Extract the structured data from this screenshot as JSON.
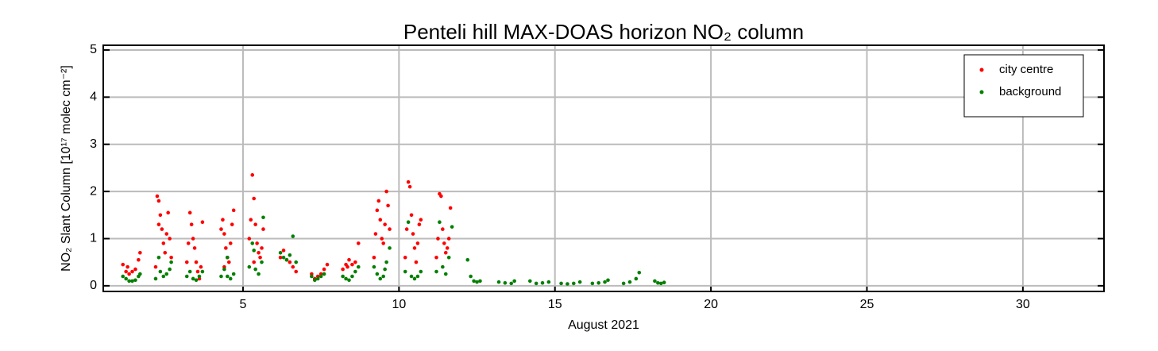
{
  "chart_data": {
    "type": "scatter",
    "title": "Penteli hill MAX-DOAS horizon NO₂ column",
    "x_label": "August 2021",
    "y_label": "NO₂ Slant Column [10¹⁷ molec cm⁻²]",
    "xlim": [
      0.52,
      32.6
    ],
    "ylim": [
      -0.12,
      5.1
    ],
    "xticks": [
      5,
      10,
      15,
      20,
      25,
      30
    ],
    "yticks": [
      0,
      1,
      2,
      3,
      4,
      5
    ],
    "grid": true,
    "legend": "upper right",
    "series": [
      {
        "name": "city centre",
        "color": "#ff0000",
        "x": [
          1.15,
          1.25,
          1.35,
          1.45,
          1.55,
          1.65,
          1.7,
          1.3,
          2.2,
          2.25,
          2.3,
          2.35,
          2.4,
          2.45,
          2.5,
          2.55,
          2.6,
          2.65,
          2.7,
          2.3,
          3.2,
          3.25,
          3.3,
          3.35,
          3.4,
          3.45,
          3.5,
          3.55,
          3.6,
          3.7,
          3.65,
          4.3,
          4.35,
          4.4,
          4.45,
          4.5,
          4.55,
          4.6,
          4.65,
          4.7,
          4.4,
          5.2,
          5.25,
          5.3,
          5.35,
          5.4,
          5.45,
          5.5,
          5.55,
          5.6,
          5.65,
          5.35,
          6.2,
          6.3,
          6.4,
          6.5,
          6.6,
          6.7,
          7.2,
          7.3,
          7.4,
          7.5,
          7.6,
          7.7,
          8.2,
          8.3,
          8.4,
          8.5,
          8.6,
          8.7,
          8.35,
          9.2,
          9.25,
          9.3,
          9.35,
          9.4,
          9.45,
          9.5,
          9.55,
          9.6,
          9.65,
          9.7,
          10.2,
          10.25,
          10.3,
          10.35,
          10.4,
          10.45,
          10.5,
          10.55,
          10.6,
          10.65,
          10.7,
          11.2,
          11.25,
          11.3,
          11.35,
          11.4,
          11.45,
          11.5,
          11.55,
          11.6,
          11.65
        ],
        "values": [
          0.45,
          0.3,
          0.25,
          0.3,
          0.35,
          0.55,
          0.7,
          0.4,
          0.4,
          1.9,
          1.8,
          1.5,
          1.2,
          0.9,
          0.7,
          1.1,
          1.55,
          1.0,
          0.6,
          1.3,
          0.5,
          0.9,
          1.55,
          1.3,
          1.0,
          0.8,
          0.5,
          0.3,
          0.15,
          1.35,
          0.4,
          1.2,
          1.4,
          1.1,
          0.8,
          0.6,
          0.5,
          0.9,
          1.3,
          1.6,
          0.4,
          1.0,
          1.4,
          2.35,
          1.85,
          1.3,
          0.9,
          0.7,
          0.6,
          0.8,
          1.2,
          0.5,
          0.6,
          0.75,
          0.55,
          0.5,
          0.4,
          0.3,
          0.25,
          0.15,
          0.2,
          0.25,
          0.35,
          0.45,
          0.35,
          0.45,
          0.55,
          0.45,
          0.5,
          0.9,
          0.4,
          0.6,
          1.1,
          1.6,
          1.8,
          1.4,
          1.0,
          0.9,
          1.3,
          2.0,
          1.7,
          1.2,
          0.6,
          1.2,
          2.2,
          2.1,
          1.5,
          1.1,
          0.8,
          0.5,
          0.9,
          1.3,
          1.4,
          0.6,
          1.0,
          1.95,
          1.9,
          1.2,
          0.9,
          0.7,
          0.8,
          1.0,
          1.65
        ]
      },
      {
        "name": "background",
        "color": "#008000",
        "x": [
          1.15,
          1.25,
          1.35,
          1.45,
          1.55,
          1.65,
          1.7,
          2.2,
          2.3,
          2.35,
          2.45,
          2.55,
          2.65,
          2.7,
          3.2,
          3.3,
          3.4,
          3.5,
          3.6,
          3.7,
          4.3,
          4.4,
          4.5,
          4.6,
          4.7,
          4.5,
          5.2,
          5.3,
          5.4,
          5.5,
          5.6,
          5.65,
          5.35,
          6.2,
          6.3,
          6.4,
          6.5,
          6.6,
          6.7,
          7.2,
          7.3,
          7.4,
          7.5,
          7.6,
          8.2,
          8.3,
          8.4,
          8.5,
          8.6,
          8.7,
          9.2,
          9.3,
          9.4,
          9.5,
          9.6,
          9.7,
          9.55,
          10.2,
          10.3,
          10.4,
          10.5,
          10.6,
          10.7,
          11.2,
          11.3,
          11.4,
          11.5,
          11.6,
          11.7,
          12.2,
          12.3,
          12.4,
          12.5,
          12.6,
          13.2,
          13.4,
          13.6,
          13.7,
          14.2,
          14.4,
          14.6,
          14.8,
          15.2,
          15.4,
          15.6,
          15.8,
          16.2,
          16.4,
          16.6,
          16.7,
          17.2,
          17.4,
          17.6,
          17.7,
          18.2,
          18.3,
          18.4,
          18.5
        ],
        "values": [
          0.2,
          0.15,
          0.1,
          0.1,
          0.12,
          0.2,
          0.25,
          0.15,
          0.6,
          0.3,
          0.2,
          0.25,
          0.35,
          0.5,
          0.2,
          0.3,
          0.15,
          0.12,
          0.2,
          0.3,
          0.2,
          0.35,
          0.2,
          0.15,
          0.25,
          0.6,
          0.4,
          0.9,
          0.35,
          0.25,
          0.5,
          1.45,
          0.75,
          0.7,
          0.6,
          0.55,
          0.65,
          1.05,
          0.5,
          0.2,
          0.12,
          0.15,
          0.2,
          0.25,
          0.2,
          0.15,
          0.12,
          0.2,
          0.3,
          0.4,
          0.4,
          0.25,
          0.15,
          0.2,
          0.5,
          0.8,
          0.35,
          0.3,
          1.35,
          0.2,
          0.15,
          0.2,
          0.3,
          0.3,
          1.35,
          0.4,
          0.25,
          0.6,
          1.25,
          0.55,
          0.2,
          0.1,
          0.08,
          0.1,
          0.08,
          0.06,
          0.05,
          0.1,
          0.1,
          0.05,
          0.06,
          0.08,
          0.05,
          0.04,
          0.05,
          0.08,
          0.05,
          0.06,
          0.08,
          0.12,
          0.05,
          0.08,
          0.15,
          0.28,
          0.1,
          0.06,
          0.05,
          0.07
        ]
      }
    ]
  }
}
